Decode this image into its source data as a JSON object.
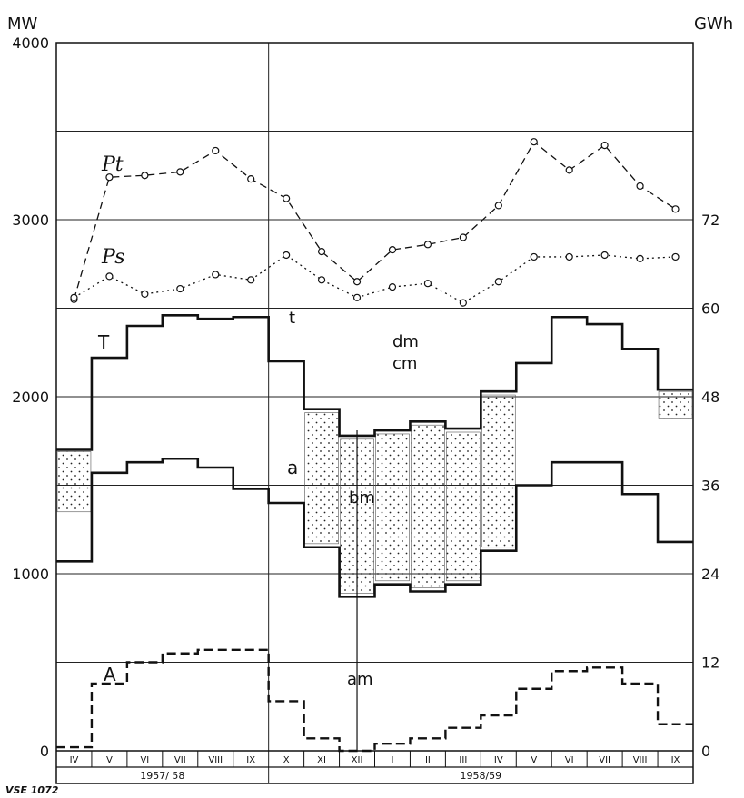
{
  "chart_data": {
    "type": "line",
    "left_axis_unit": "MW",
    "right_axis_unit": "GWh",
    "left_ticks": [
      "4000",
      "3000",
      "2000",
      "1000",
      "0"
    ],
    "left_tick_values": [
      4000,
      3000,
      2000,
      1000,
      0
    ],
    "right_ticks": [
      "72",
      "60",
      "48",
      "36",
      "24",
      "12",
      "0"
    ],
    "right_tick_values": [
      72,
      60,
      48,
      36,
      24,
      12,
      0
    ],
    "ylim_mw": [
      0,
      4000
    ],
    "ylim_gwh": [
      0,
      96
    ],
    "grid": true,
    "months": [
      "IV",
      "V",
      "VI",
      "VII",
      "VIII",
      "IX",
      "X",
      "XI",
      "XII",
      "I",
      "II",
      "III",
      "IV",
      "V",
      "VI",
      "VII",
      "VIII",
      "IX"
    ],
    "years": [
      "1957/ 58",
      "1958/59"
    ],
    "footer": "VSE 1072",
    "series": [
      {
        "name": "Pt",
        "style": "dashed-circles",
        "values": [
          2550,
          3240,
          3250,
          3270,
          3390,
          3230,
          3120,
          2820,
          2650,
          2830,
          2860,
          2900,
          3080,
          3440,
          3280,
          3420,
          3190,
          3060
        ]
      },
      {
        "name": "Ps",
        "style": "dotted-circles",
        "values": [
          2560,
          2680,
          2580,
          2610,
          2690,
          2660,
          2800,
          2660,
          2560,
          2620,
          2640,
          2530,
          2650,
          2790,
          2790,
          2800,
          2780,
          2790
        ]
      },
      {
        "name": "T",
        "style": "step",
        "values": [
          1700,
          2220,
          2400,
          2460,
          2440,
          2450,
          2200,
          1930,
          1780,
          1810,
          1860,
          1820,
          2030,
          2190,
          2450,
          2410,
          2270,
          2040
        ]
      },
      {
        "name": "a",
        "style": "step",
        "values": [
          1070,
          1570,
          1630,
          1650,
          1600,
          1480,
          1400,
          1150,
          870,
          940,
          900,
          940,
          1130,
          1500,
          1630,
          1630,
          1450,
          1180
        ]
      },
      {
        "name": "A",
        "style": "dashed-step",
        "values": [
          20,
          380,
          500,
          550,
          570,
          570,
          280,
          70,
          0,
          40,
          70,
          130,
          200,
          350,
          450,
          470,
          380,
          150
        ]
      }
    ],
    "annotations": [
      "Pt",
      "Ps",
      "T",
      "t",
      "a",
      "A",
      "dm",
      "cm",
      "bm",
      "am"
    ]
  }
}
